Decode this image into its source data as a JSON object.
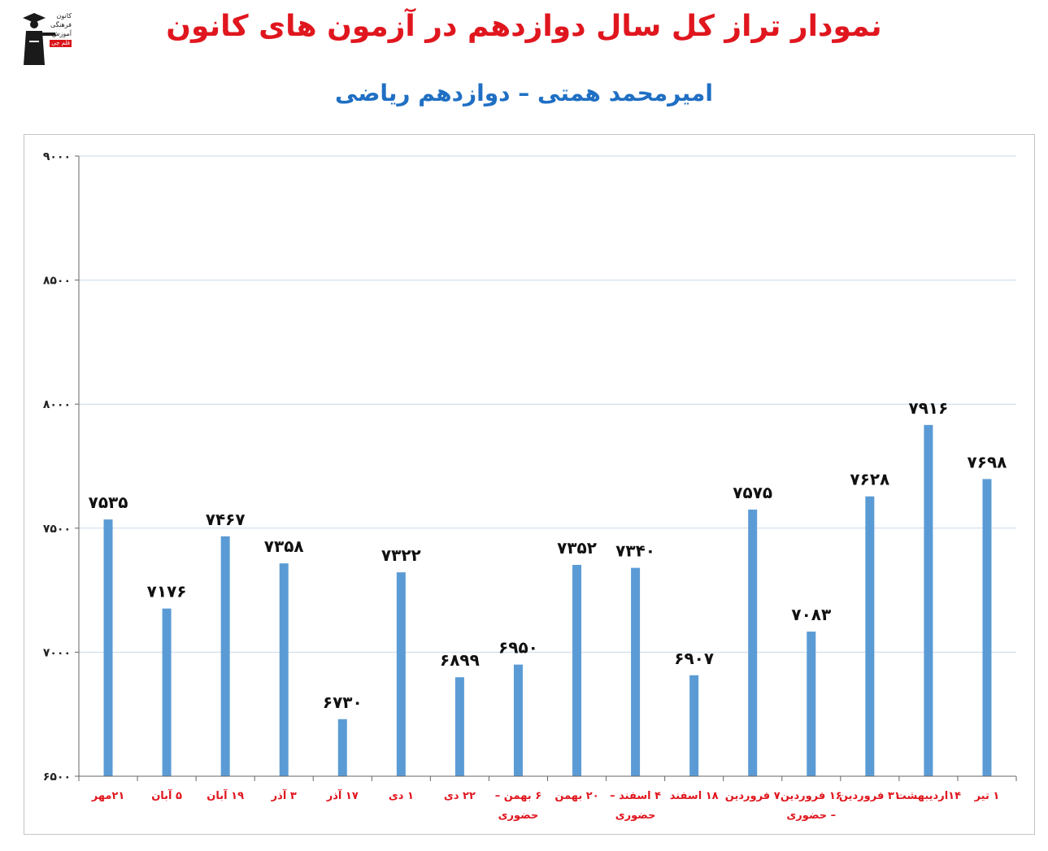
{
  "header": {
    "title": "نمودار تراز کل سال دوازدهم در آزمون های کانون",
    "subtitle": "امیرمحمد همتی – دوازدهم ریاضی"
  },
  "logo": {
    "line1": "کانون",
    "line2": "فرهنگی",
    "line3": "آموزش",
    "tag": "قلم چی"
  },
  "colors": {
    "bar": "#5b9bd5",
    "title": "#e0161e",
    "subtitle": "#1f6fc4",
    "category_label": "#e0161e",
    "gridline": "#c9d9e8"
  },
  "chart_data": {
    "type": "bar",
    "title": "",
    "xlabel": "",
    "ylabel": "",
    "ylim": [
      6500,
      9000
    ],
    "yticks": [
      6500,
      7000,
      7500,
      8000,
      8500,
      9000
    ],
    "ytick_labels": [
      "۶۵۰۰",
      "۷۰۰۰",
      "۷۵۰۰",
      "۸۰۰۰",
      "۸۵۰۰",
      "۹۰۰۰"
    ],
    "grid": true,
    "legend": "none",
    "categories": [
      "۲۱مهر",
      "۵ آبان",
      "۱۹ آبان",
      "۳ آذر",
      "۱۷ آذر",
      "۱ دی",
      "۲۲ دی",
      "۶ بهمن – حضوری",
      "۲۰ بهمن",
      "۴ اسفند – حضوری",
      "۱۸ اسفند",
      "۷ فروردین",
      "۱۶ فروردین – حضوری",
      "۳۱ فروردین",
      "۱۴اردیبهشت",
      "۱ تیر"
    ],
    "category_lines": [
      [
        "۲۱مهر"
      ],
      [
        "۵ آبان"
      ],
      [
        "۱۹ آبان"
      ],
      [
        "۳ آذر"
      ],
      [
        "۱۷ آذر"
      ],
      [
        "۱ دی"
      ],
      [
        "۲۲ دی"
      ],
      [
        "۶ بهمن –",
        "حضوری"
      ],
      [
        "۲۰ بهمن"
      ],
      [
        "۴ اسفند –",
        "حضوری"
      ],
      [
        "۱۸ اسفند"
      ],
      [
        "۷ فروردین"
      ],
      [
        "۱۶ فروردین",
        "– حضوری"
      ],
      [
        "۳۱ فروردین"
      ],
      [
        "۱۴اردیبهشت"
      ],
      [
        "۱ تیر"
      ]
    ],
    "values": [
      7535,
      7176,
      7467,
      7358,
      6730,
      7322,
      6899,
      6950,
      7352,
      7340,
      6907,
      7575,
      7083,
      7628,
      7916,
      7698
    ],
    "value_labels": [
      "۷۵۳۵",
      "۷۱۷۶",
      "۷۴۶۷",
      "۷۳۵۸",
      "۶۷۳۰",
      "۷۳۲۲",
      "۶۸۹۹",
      "۶۹۵۰",
      "۷۳۵۲",
      "۷۳۴۰",
      "۶۹۰۷",
      "۷۵۷۵",
      "۷۰۸۳",
      "۷۶۲۸",
      "۷۹۱۶",
      "۷۶۹۸"
    ]
  }
}
